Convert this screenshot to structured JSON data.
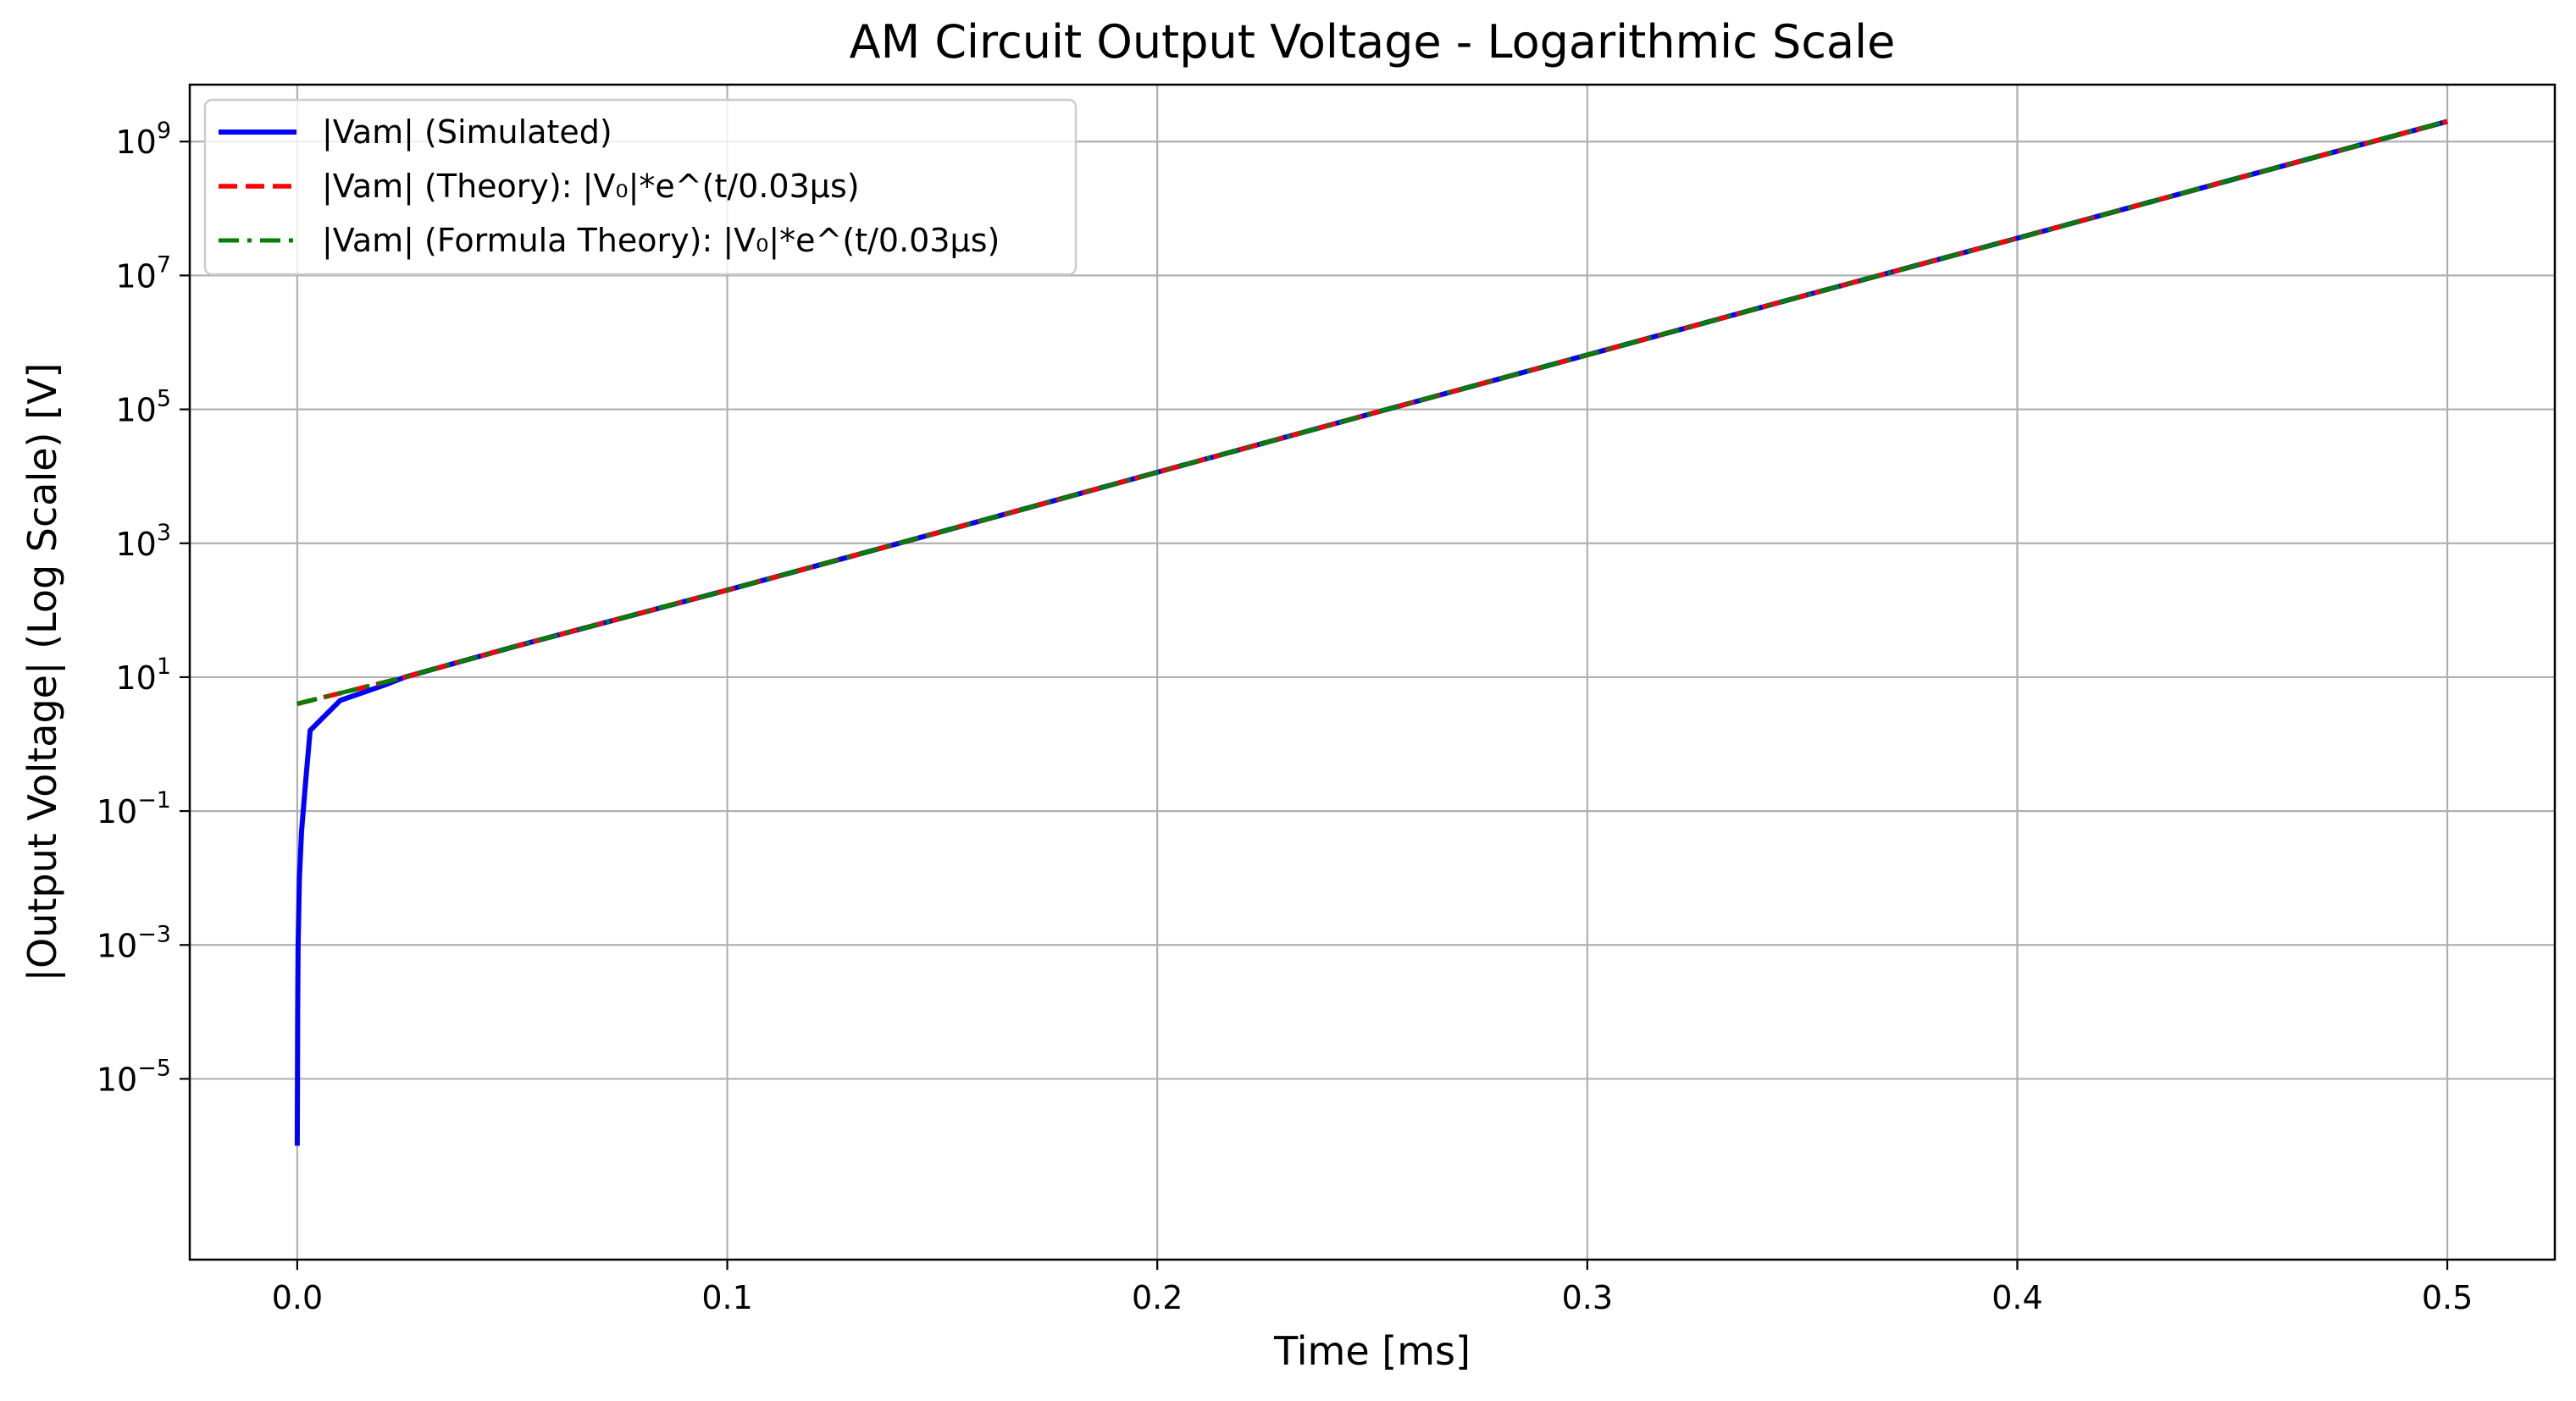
{
  "chart_data": {
    "type": "line",
    "title": "AM Circuit Output Voltage - Logarithmic Scale",
    "xlabel": "Time [ms]",
    "ylabel": "|Output Voltage| (Log Scale) [V]",
    "xlim": [
      -0.025,
      0.525
    ],
    "ylim_log10": [
      -7.7,
      9.85
    ],
    "y_scale": "log",
    "grid": true,
    "legend_position": "top-left",
    "x_ticks": [
      {
        "value": 0.0,
        "label": "0.0"
      },
      {
        "value": 0.1,
        "label": "0.1"
      },
      {
        "value": 0.2,
        "label": "0.2"
      },
      {
        "value": 0.3,
        "label": "0.3"
      },
      {
        "value": 0.4,
        "label": "0.4"
      },
      {
        "value": 0.5,
        "label": "0.5"
      }
    ],
    "y_ticks": [
      {
        "exp": 9,
        "label": "10",
        "sup": "9"
      },
      {
        "exp": 7,
        "label": "10",
        "sup": "7"
      },
      {
        "exp": 5,
        "label": "10",
        "sup": "5"
      },
      {
        "exp": 3,
        "label": "10",
        "sup": "3"
      },
      {
        "exp": 1,
        "label": "10",
        "sup": "1"
      },
      {
        "exp": -1,
        "label": "10",
        "sup": "−1"
      },
      {
        "exp": -3,
        "label": "10",
        "sup": "−3"
      },
      {
        "exp": -5,
        "label": "10",
        "sup": "−5"
      }
    ],
    "series": [
      {
        "name": "|Vam| (Simulated)",
        "color": "#0000ff",
        "style": "solid",
        "x": [
          0.0,
          0.0001,
          0.0002,
          0.0005,
          0.001,
          0.002,
          0.003,
          0.01,
          0.02,
          0.025,
          0.05,
          0.1,
          0.15,
          0.2,
          0.25,
          0.3,
          0.35,
          0.4,
          0.45,
          0.5
        ],
        "y": [
          1e-06,
          0.0001,
          0.001,
          0.01,
          0.05,
          0.3,
          1.6,
          4.5,
          7.5,
          10,
          28,
          200,
          1500,
          11500,
          87000,
          650000,
          4900000,
          36000000,
          270000000,
          2000000000
        ]
      },
      {
        "name": "|Vam| (Theory): |V₀|*e^(t/0.03µs)",
        "color": "#ff0000",
        "style": "dashed",
        "x": [
          0.0,
          0.025,
          0.05,
          0.1,
          0.15,
          0.2,
          0.25,
          0.3,
          0.35,
          0.4,
          0.45,
          0.5
        ],
        "y": [
          4,
          10,
          28,
          200,
          1500,
          11500,
          87000,
          650000,
          4900000,
          36000000,
          270000000,
          2000000000
        ]
      },
      {
        "name": "|Vam| (Formula Theory): |V₀|*e^(t/0.03µs)",
        "color": "#007f00",
        "style": "dashdot",
        "x": [
          0.0,
          0.025,
          0.05,
          0.1,
          0.15,
          0.2,
          0.25,
          0.3,
          0.35,
          0.4,
          0.45,
          0.5
        ],
        "y": [
          4,
          10,
          28,
          200,
          1500,
          11500,
          87000,
          650000,
          4900000,
          36000000,
          270000000,
          2000000000
        ]
      }
    ]
  }
}
